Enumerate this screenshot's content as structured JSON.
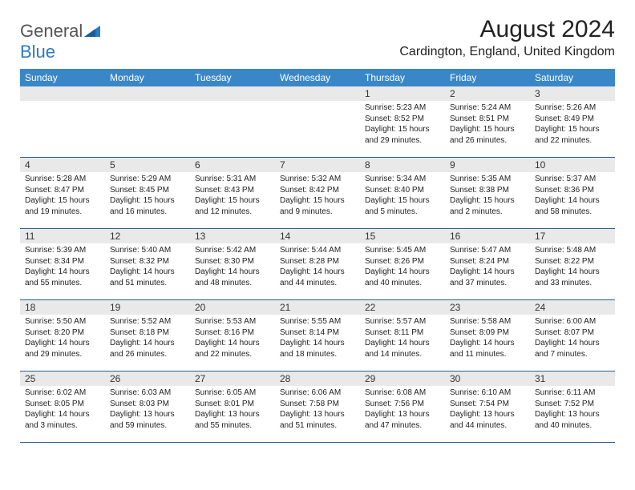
{
  "logo": {
    "general": "General",
    "blue": "Blue"
  },
  "header": {
    "month_title": "August 2024",
    "location": "Cardington, England, United Kingdom"
  },
  "colors": {
    "header_bg": "#3a87c8",
    "header_text": "#ffffff",
    "daynum_bg": "#e9e9e9",
    "week_border": "#2c5f8d",
    "logo_blue": "#2b7bbf"
  },
  "day_names": [
    "Sunday",
    "Monday",
    "Tuesday",
    "Wednesday",
    "Thursday",
    "Friday",
    "Saturday"
  ],
  "weeks": [
    [
      null,
      null,
      null,
      null,
      {
        "n": "1",
        "sr": "Sunrise: 5:23 AM",
        "ss": "Sunset: 8:52 PM",
        "dl": "Daylight: 15 hours and 29 minutes."
      },
      {
        "n": "2",
        "sr": "Sunrise: 5:24 AM",
        "ss": "Sunset: 8:51 PM",
        "dl": "Daylight: 15 hours and 26 minutes."
      },
      {
        "n": "3",
        "sr": "Sunrise: 5:26 AM",
        "ss": "Sunset: 8:49 PM",
        "dl": "Daylight: 15 hours and 22 minutes."
      }
    ],
    [
      {
        "n": "4",
        "sr": "Sunrise: 5:28 AM",
        "ss": "Sunset: 8:47 PM",
        "dl": "Daylight: 15 hours and 19 minutes."
      },
      {
        "n": "5",
        "sr": "Sunrise: 5:29 AM",
        "ss": "Sunset: 8:45 PM",
        "dl": "Daylight: 15 hours and 16 minutes."
      },
      {
        "n": "6",
        "sr": "Sunrise: 5:31 AM",
        "ss": "Sunset: 8:43 PM",
        "dl": "Daylight: 15 hours and 12 minutes."
      },
      {
        "n": "7",
        "sr": "Sunrise: 5:32 AM",
        "ss": "Sunset: 8:42 PM",
        "dl": "Daylight: 15 hours and 9 minutes."
      },
      {
        "n": "8",
        "sr": "Sunrise: 5:34 AM",
        "ss": "Sunset: 8:40 PM",
        "dl": "Daylight: 15 hours and 5 minutes."
      },
      {
        "n": "9",
        "sr": "Sunrise: 5:35 AM",
        "ss": "Sunset: 8:38 PM",
        "dl": "Daylight: 15 hours and 2 minutes."
      },
      {
        "n": "10",
        "sr": "Sunrise: 5:37 AM",
        "ss": "Sunset: 8:36 PM",
        "dl": "Daylight: 14 hours and 58 minutes."
      }
    ],
    [
      {
        "n": "11",
        "sr": "Sunrise: 5:39 AM",
        "ss": "Sunset: 8:34 PM",
        "dl": "Daylight: 14 hours and 55 minutes."
      },
      {
        "n": "12",
        "sr": "Sunrise: 5:40 AM",
        "ss": "Sunset: 8:32 PM",
        "dl": "Daylight: 14 hours and 51 minutes."
      },
      {
        "n": "13",
        "sr": "Sunrise: 5:42 AM",
        "ss": "Sunset: 8:30 PM",
        "dl": "Daylight: 14 hours and 48 minutes."
      },
      {
        "n": "14",
        "sr": "Sunrise: 5:44 AM",
        "ss": "Sunset: 8:28 PM",
        "dl": "Daylight: 14 hours and 44 minutes."
      },
      {
        "n": "15",
        "sr": "Sunrise: 5:45 AM",
        "ss": "Sunset: 8:26 PM",
        "dl": "Daylight: 14 hours and 40 minutes."
      },
      {
        "n": "16",
        "sr": "Sunrise: 5:47 AM",
        "ss": "Sunset: 8:24 PM",
        "dl": "Daylight: 14 hours and 37 minutes."
      },
      {
        "n": "17",
        "sr": "Sunrise: 5:48 AM",
        "ss": "Sunset: 8:22 PM",
        "dl": "Daylight: 14 hours and 33 minutes."
      }
    ],
    [
      {
        "n": "18",
        "sr": "Sunrise: 5:50 AM",
        "ss": "Sunset: 8:20 PM",
        "dl": "Daylight: 14 hours and 29 minutes."
      },
      {
        "n": "19",
        "sr": "Sunrise: 5:52 AM",
        "ss": "Sunset: 8:18 PM",
        "dl": "Daylight: 14 hours and 26 minutes."
      },
      {
        "n": "20",
        "sr": "Sunrise: 5:53 AM",
        "ss": "Sunset: 8:16 PM",
        "dl": "Daylight: 14 hours and 22 minutes."
      },
      {
        "n": "21",
        "sr": "Sunrise: 5:55 AM",
        "ss": "Sunset: 8:14 PM",
        "dl": "Daylight: 14 hours and 18 minutes."
      },
      {
        "n": "22",
        "sr": "Sunrise: 5:57 AM",
        "ss": "Sunset: 8:11 PM",
        "dl": "Daylight: 14 hours and 14 minutes."
      },
      {
        "n": "23",
        "sr": "Sunrise: 5:58 AM",
        "ss": "Sunset: 8:09 PM",
        "dl": "Daylight: 14 hours and 11 minutes."
      },
      {
        "n": "24",
        "sr": "Sunrise: 6:00 AM",
        "ss": "Sunset: 8:07 PM",
        "dl": "Daylight: 14 hours and 7 minutes."
      }
    ],
    [
      {
        "n": "25",
        "sr": "Sunrise: 6:02 AM",
        "ss": "Sunset: 8:05 PM",
        "dl": "Daylight: 14 hours and 3 minutes."
      },
      {
        "n": "26",
        "sr": "Sunrise: 6:03 AM",
        "ss": "Sunset: 8:03 PM",
        "dl": "Daylight: 13 hours and 59 minutes."
      },
      {
        "n": "27",
        "sr": "Sunrise: 6:05 AM",
        "ss": "Sunset: 8:01 PM",
        "dl": "Daylight: 13 hours and 55 minutes."
      },
      {
        "n": "28",
        "sr": "Sunrise: 6:06 AM",
        "ss": "Sunset: 7:58 PM",
        "dl": "Daylight: 13 hours and 51 minutes."
      },
      {
        "n": "29",
        "sr": "Sunrise: 6:08 AM",
        "ss": "Sunset: 7:56 PM",
        "dl": "Daylight: 13 hours and 47 minutes."
      },
      {
        "n": "30",
        "sr": "Sunrise: 6:10 AM",
        "ss": "Sunset: 7:54 PM",
        "dl": "Daylight: 13 hours and 44 minutes."
      },
      {
        "n": "31",
        "sr": "Sunrise: 6:11 AM",
        "ss": "Sunset: 7:52 PM",
        "dl": "Daylight: 13 hours and 40 minutes."
      }
    ]
  ]
}
